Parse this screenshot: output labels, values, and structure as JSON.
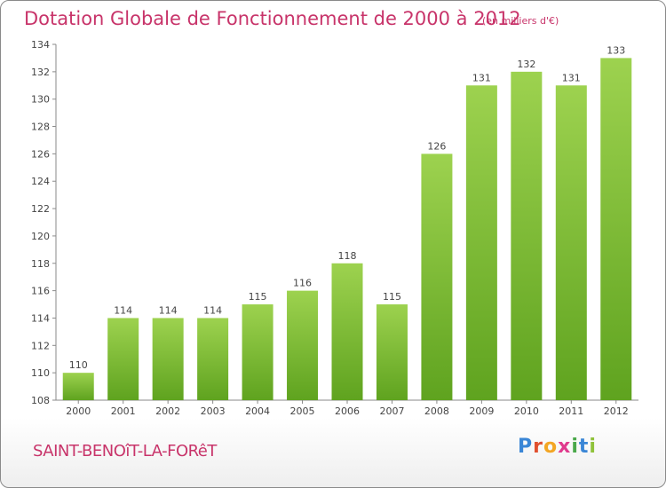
{
  "title": "Dotation Globale de Fonctionnement de 2000 à 2012",
  "unit_note": "(en milliers d'€)",
  "town": "SAINT-BENOîT-LA-FORêT",
  "logo": {
    "text": "Proxiti",
    "letters": [
      "P",
      "r",
      "o",
      "x",
      "i",
      "t",
      "i"
    ]
  },
  "colors": {
    "title": "#c8346a",
    "bar_light": "#9dd24f",
    "bar_dark": "#5fa31f",
    "axis": "#8a8a8a"
  },
  "chart_data": {
    "type": "bar",
    "title": "Dotation Globale de Fonctionnement de 2000 à 2012",
    "subtitle": "(en milliers d'€)",
    "categories": [
      "2000",
      "2001",
      "2002",
      "2003",
      "2004",
      "2005",
      "2006",
      "2007",
      "2008",
      "2009",
      "2010",
      "2011",
      "2012"
    ],
    "values": [
      110,
      114,
      114,
      114,
      115,
      116,
      118,
      115,
      126,
      131,
      132,
      131,
      133
    ],
    "ylim": [
      108,
      134
    ],
    "yticks": [
      108,
      110,
      112,
      114,
      116,
      118,
      120,
      122,
      124,
      126,
      128,
      130,
      132,
      134
    ],
    "grid": false,
    "data_labels": true
  }
}
